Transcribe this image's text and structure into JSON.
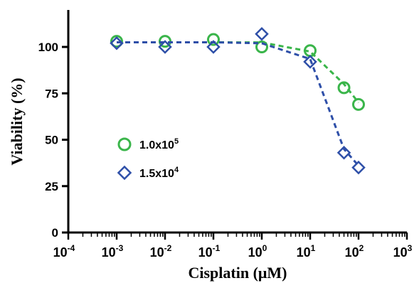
{
  "chart_data": {
    "type": "scatter",
    "title": "",
    "xlabel": "Cisplatin (μM)",
    "ylabel": "Viability (%)",
    "x_scale": "log10",
    "xlim": [
      0.0001,
      1000
    ],
    "ylim": [
      0,
      120
    ],
    "x_ticks": [
      {
        "base": "10",
        "exp": "-4"
      },
      {
        "base": "10",
        "exp": "-3"
      },
      {
        "base": "10",
        "exp": "-2"
      },
      {
        "base": "10",
        "exp": "-1"
      },
      {
        "base": "10",
        "exp": "0"
      },
      {
        "base": "10",
        "exp": "1"
      },
      {
        "base": "10",
        "exp": "2"
      },
      {
        "base": "10",
        "exp": "3"
      }
    ],
    "y_ticks": [
      "0",
      "25",
      "50",
      "75",
      "100"
    ],
    "grid": false,
    "legend_position": "middle-left",
    "series": [
      {
        "name_base": "1.0x10",
        "name_exp": "5",
        "color": "#3ab54a",
        "marker": "circle",
        "line": "dashed",
        "x": [
          0.001,
          0.01,
          0.1,
          1,
          10,
          50,
          100
        ],
        "y": [
          103,
          103,
          104,
          100,
          98,
          78,
          69
        ],
        "fit_y": [
          102.5,
          102.5,
          102.5,
          102.4,
          97.5,
          80,
          70
        ]
      },
      {
        "name_base": "1.5x10",
        "name_exp": "4",
        "color": "#2e4fa8",
        "marker": "diamond",
        "line": "dashed",
        "x": [
          0.001,
          0.01,
          0.1,
          1,
          10,
          50,
          100
        ],
        "y": [
          102,
          100,
          100,
          107,
          92,
          43,
          35
        ],
        "fit_y": [
          102.5,
          102.5,
          102.5,
          102,
          93.5,
          45,
          36
        ]
      }
    ]
  }
}
